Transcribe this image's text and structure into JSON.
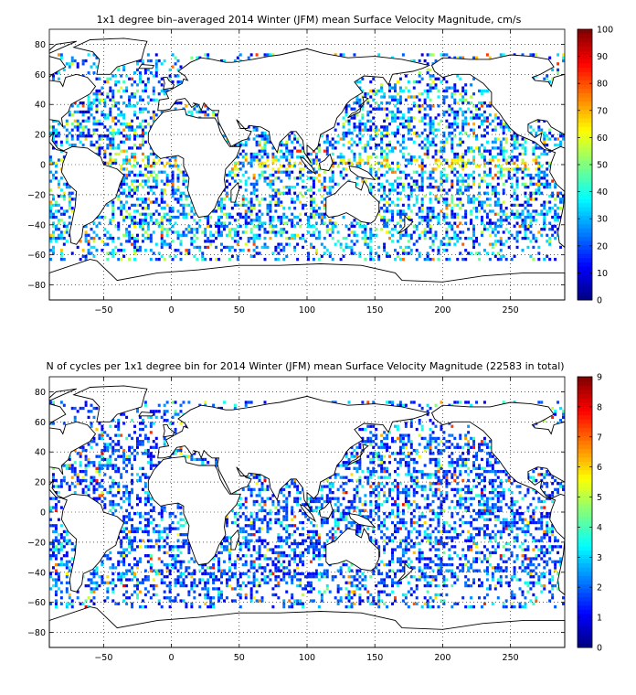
{
  "chart_data": [
    {
      "type": "heatmap",
      "title": "1x1 degree bin–averaged 2014 Winter (JFM) mean Surface Velocity Magnitude, cm/s",
      "xlabel": "",
      "ylabel": "",
      "xlim": [
        -90,
        290
      ],
      "ylim": [
        -90,
        90
      ],
      "xticks": [
        -50,
        0,
        50,
        100,
        150,
        200,
        250
      ],
      "yticks": [
        80,
        60,
        40,
        20,
        0,
        -20,
        -40,
        -60,
        -80
      ],
      "colorbar": {
        "min": 0,
        "max": 100,
        "ticks": [
          0,
          10,
          20,
          30,
          40,
          50,
          60,
          70,
          80,
          90,
          100
        ],
        "colormap": "jet"
      },
      "grid": true,
      "typical_value": 25
    },
    {
      "type": "heatmap",
      "title": "N of cycles per 1x1 degree bin for 2014 Winter (JFM) mean Surface Velocity Magnitude (22583 in total)",
      "xlabel": "",
      "ylabel": "",
      "xlim": [
        -90,
        290
      ],
      "ylim": [
        -90,
        90
      ],
      "xticks": [
        -50,
        0,
        50,
        100,
        150,
        200,
        250
      ],
      "yticks": [
        80,
        60,
        40,
        20,
        0,
        -20,
        -40,
        -60,
        -80
      ],
      "colorbar": {
        "min": 0,
        "max": 9,
        "ticks": [
          0,
          1,
          2,
          3,
          4,
          5,
          6,
          7,
          8,
          9
        ],
        "colormap": "jet"
      },
      "grid": true,
      "typical_value": 1.5
    }
  ]
}
